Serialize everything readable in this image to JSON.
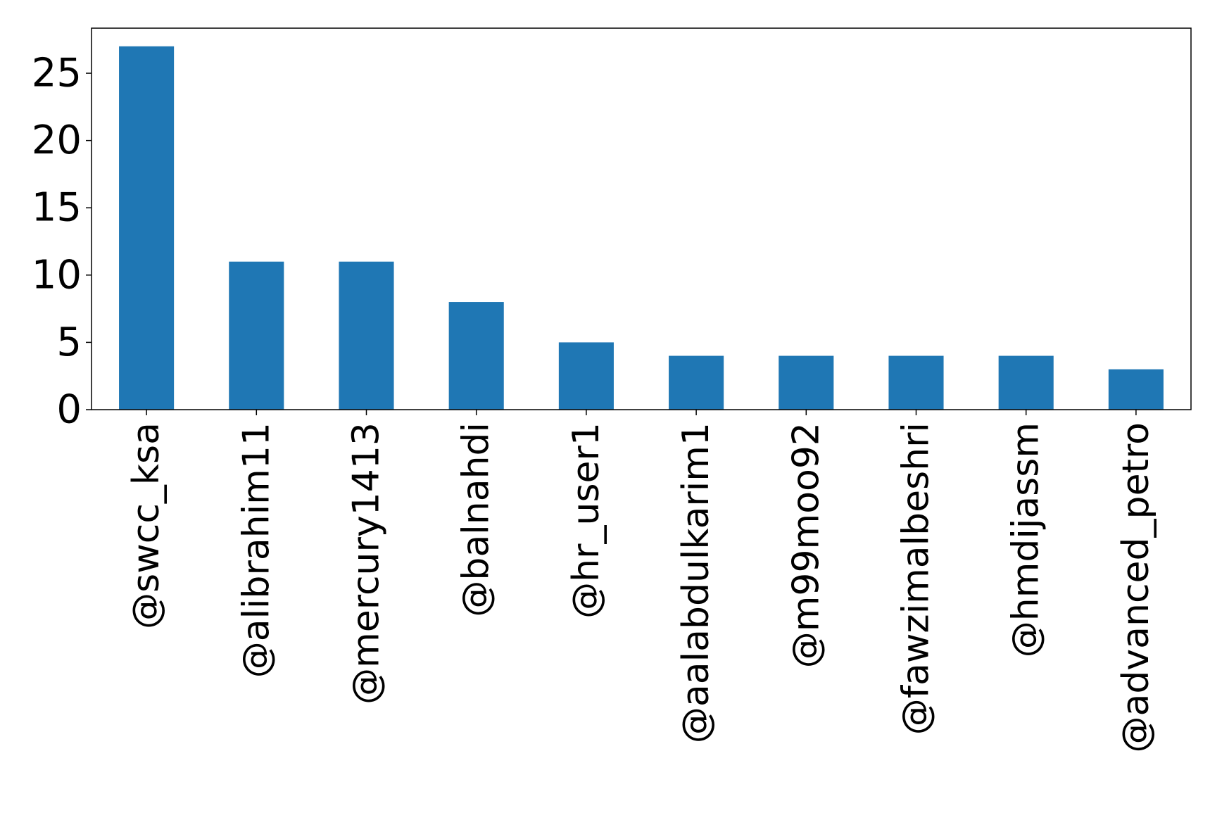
{
  "chart_data": {
    "type": "bar",
    "title": "",
    "xlabel": "",
    "ylabel": "",
    "categories": [
      "@swcc_ksa",
      "@alibrahim11",
      "@mercury1413",
      "@balnahdi",
      "@hr_user1",
      "@aalabdulkarim1",
      "@m99moo92",
      "@fawzimalbeshri",
      "@hmdijassm",
      "@advanced_petro"
    ],
    "values": [
      27,
      11,
      11,
      8,
      5,
      4,
      4,
      4,
      4,
      3
    ],
    "ylim": [
      0,
      28.35
    ],
    "yticks": [
      0,
      5,
      10,
      15,
      20,
      25
    ],
    "grid": false,
    "legend": "none",
    "bar_color": "#1f77b4"
  }
}
